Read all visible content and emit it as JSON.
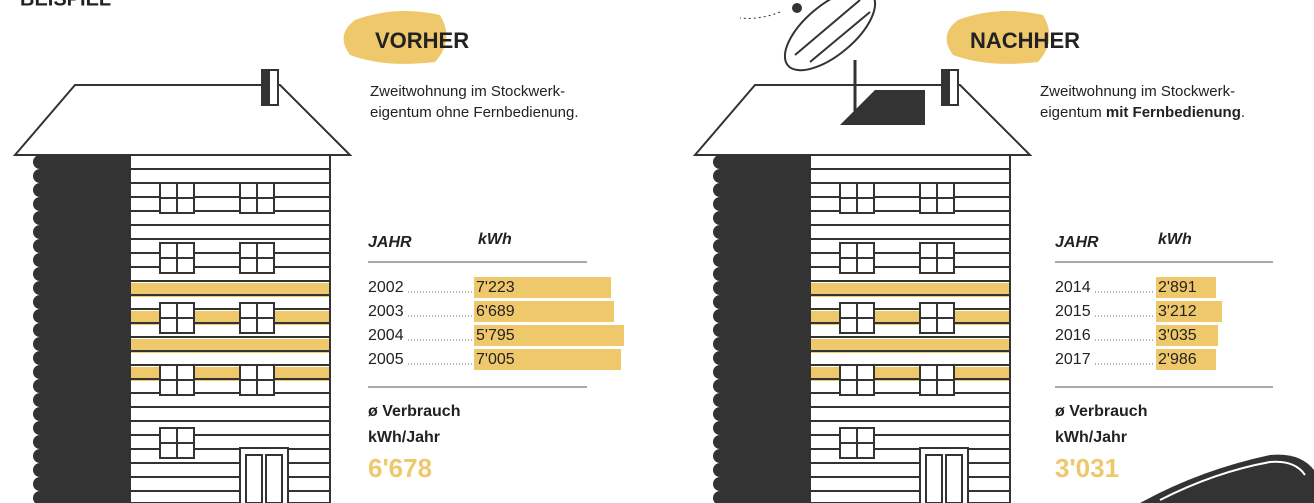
{
  "header": {
    "title": "BEISPIEL"
  },
  "panels": [
    {
      "title": "VORHER",
      "description": {
        "line1": "Zweitwohnung im Stockwerk-",
        "line2": "eigentum ohne Fernbedienung."
      },
      "table": {
        "headers": [
          "JAHR",
          "kWh"
        ],
        "rows": [
          [
            "2002",
            "7'223"
          ],
          [
            "2003",
            "6'689"
          ],
          [
            "2004",
            "5'795"
          ],
          [
            "2005",
            "7'005"
          ]
        ]
      },
      "average": {
        "label_line1": "ø Verbrauch",
        "label_line2": "kWh/Jahr",
        "value": "6'678"
      }
    },
    {
      "title": "NACHHER",
      "description": {
        "line1": "Zweitwohnung im Stockwerk-",
        "line2": "eigentum ",
        "line2_bold": "mit Fernbedienung",
        "line2_end": "."
      },
      "table": {
        "headers": [
          "JAHR",
          "kWh"
        ],
        "rows": [
          [
            "2014",
            "2'891"
          ],
          [
            "2015",
            "3'212"
          ],
          [
            "2016",
            "3'035"
          ],
          [
            "2017",
            "2'986"
          ]
        ]
      },
      "average": {
        "label_line1": "ø Verbrauch",
        "label_line2": "kWh/Jahr",
        "value": "3'031"
      }
    }
  ]
}
